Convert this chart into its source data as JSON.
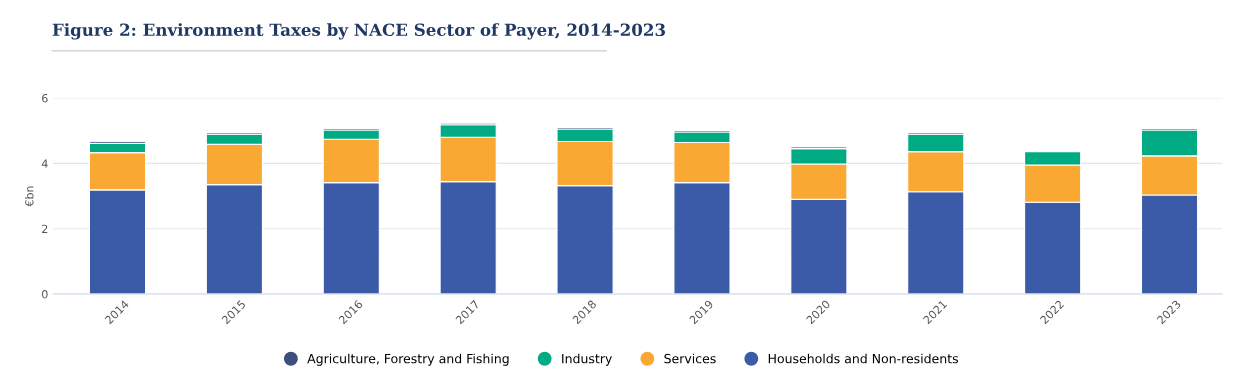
{
  "chart_data": {
    "type": "bar",
    "stacked": true,
    "title": "Figure 2: Environment Taxes by NACE Sector of Payer, 2014-2023",
    "ylabel": "€bn",
    "categories": [
      "2014",
      "2015",
      "2016",
      "2017",
      "2018",
      "2019",
      "2020",
      "2021",
      "2022",
      "2023"
    ],
    "ylim": [
      0,
      6
    ],
    "yticks": [
      0,
      2,
      4,
      6
    ],
    "grid": "y",
    "legend": "bottom",
    "series": [
      {
        "name": "Households and Non-residents",
        "color": "#3b5ba9",
        "values": [
          3.19,
          3.35,
          3.41,
          3.44,
          3.32,
          3.41,
          2.9,
          3.13,
          2.81,
          3.03
        ]
      },
      {
        "name": "Services",
        "color": "#f9a833",
        "values": [
          1.14,
          1.23,
          1.33,
          1.36,
          1.35,
          1.23,
          1.08,
          1.23,
          1.14,
          1.2
        ]
      },
      {
        "name": "Industry",
        "color": "#00ab84",
        "values": [
          0.28,
          0.31,
          0.28,
          0.38,
          0.38,
          0.32,
          0.47,
          0.53,
          0.41,
          0.79
        ]
      },
      {
        "name": "Agriculture, Forestry and Fishing",
        "color": "#3d4f7c",
        "values": [
          0.05,
          0.05,
          0.05,
          0.05,
          0.05,
          0.05,
          0.05,
          0.05,
          null,
          0.05
        ]
      }
    ]
  }
}
